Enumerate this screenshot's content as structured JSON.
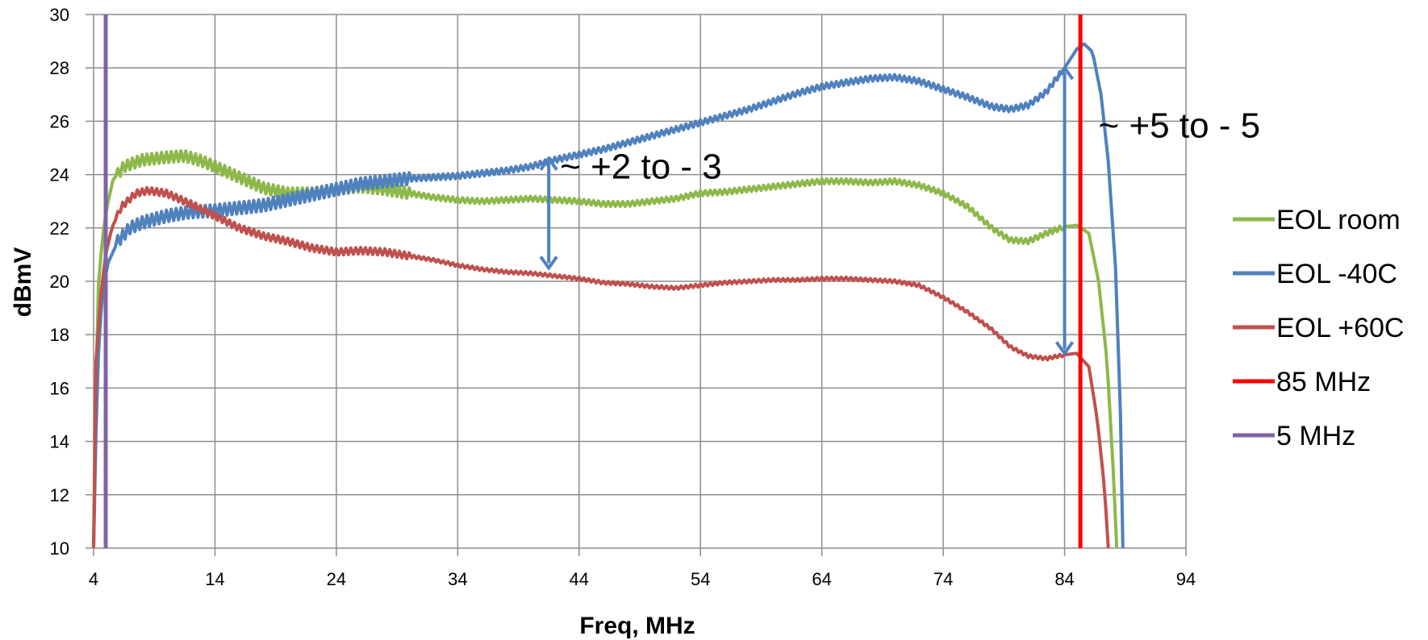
{
  "chart_data": {
    "type": "line",
    "xlabel": "Freq,  MHz",
    "ylabel": "dBmV",
    "xlim": [
      4,
      94
    ],
    "ylim": [
      10,
      30
    ],
    "x_ticks": [
      4,
      14,
      24,
      34,
      44,
      54,
      64,
      74,
      84,
      94
    ],
    "y_ticks": [
      10,
      12,
      14,
      16,
      18,
      20,
      22,
      24,
      26,
      28,
      30
    ],
    "grid": true,
    "legend_position": "right",
    "series": [
      {
        "name": "EOL room",
        "color": "#8DB84A",
        "ripple": 0.2,
        "points": [
          [
            4,
            10
          ],
          [
            4.3,
            19.3
          ],
          [
            4.7,
            21.5
          ],
          [
            5.1,
            22.8
          ],
          [
            5.6,
            23.8
          ],
          [
            6.5,
            24.3
          ],
          [
            8,
            24.55
          ],
          [
            10,
            24.65
          ],
          [
            11.5,
            24.7
          ],
          [
            13,
            24.5
          ],
          [
            14,
            24.3
          ],
          [
            16,
            23.9
          ],
          [
            18,
            23.5
          ],
          [
            20,
            23.3
          ],
          [
            22,
            23.3
          ],
          [
            24,
            23.45
          ],
          [
            26,
            23.55
          ],
          [
            28,
            23.45
          ],
          [
            30,
            23.3
          ],
          [
            32,
            23.15
          ],
          [
            34,
            23.05
          ],
          [
            36,
            23.0
          ],
          [
            38,
            23.05
          ],
          [
            40,
            23.1
          ],
          [
            42,
            23.05
          ],
          [
            44,
            23.0
          ],
          [
            46,
            22.9
          ],
          [
            48,
            22.9
          ],
          [
            50,
            23.0
          ],
          [
            52,
            23.1
          ],
          [
            54,
            23.3
          ],
          [
            56,
            23.35
          ],
          [
            58,
            23.45
          ],
          [
            60,
            23.55
          ],
          [
            62,
            23.65
          ],
          [
            64,
            23.75
          ],
          [
            66,
            23.75
          ],
          [
            68,
            23.7
          ],
          [
            70,
            23.75
          ],
          [
            72,
            23.6
          ],
          [
            74,
            23.3
          ],
          [
            76,
            22.8
          ],
          [
            78,
            22.0
          ],
          [
            79.5,
            21.55
          ],
          [
            81,
            21.5
          ],
          [
            82.5,
            21.8
          ],
          [
            84,
            22.05
          ],
          [
            85,
            22.1
          ],
          [
            86,
            21.8
          ],
          [
            86.8,
            20
          ],
          [
            87.5,
            17
          ],
          [
            88,
            13
          ],
          [
            88.3,
            10
          ]
        ]
      },
      {
        "name": "EOL -40C",
        "color": "#4F81BD",
        "ripple": 0.22,
        "points": [
          [
            4,
            10
          ],
          [
            4.3,
            16.5
          ],
          [
            4.7,
            19.5
          ],
          [
            5.2,
            20.7
          ],
          [
            6,
            21.5
          ],
          [
            7,
            22.0
          ],
          [
            8,
            22.2
          ],
          [
            10,
            22.45
          ],
          [
            12,
            22.6
          ],
          [
            14,
            22.65
          ],
          [
            16,
            22.75
          ],
          [
            18,
            22.85
          ],
          [
            20,
            23.05
          ],
          [
            22,
            23.25
          ],
          [
            24,
            23.45
          ],
          [
            26,
            23.65
          ],
          [
            28,
            23.75
          ],
          [
            30,
            23.85
          ],
          [
            32,
            23.9
          ],
          [
            34,
            23.95
          ],
          [
            36,
            24.05
          ],
          [
            38,
            24.15
          ],
          [
            40,
            24.3
          ],
          [
            42,
            24.55
          ],
          [
            44,
            24.75
          ],
          [
            46,
            24.95
          ],
          [
            48,
            25.2
          ],
          [
            50,
            25.45
          ],
          [
            52,
            25.7
          ],
          [
            54,
            25.95
          ],
          [
            56,
            26.2
          ],
          [
            58,
            26.45
          ],
          [
            60,
            26.75
          ],
          [
            62,
            27.05
          ],
          [
            64,
            27.3
          ],
          [
            66,
            27.45
          ],
          [
            68,
            27.6
          ],
          [
            70,
            27.65
          ],
          [
            72,
            27.5
          ],
          [
            74,
            27.2
          ],
          [
            76,
            26.9
          ],
          [
            78,
            26.55
          ],
          [
            79.5,
            26.45
          ],
          [
            81,
            26.6
          ],
          [
            82.5,
            27.1
          ],
          [
            84,
            28.0
          ],
          [
            85,
            28.7
          ],
          [
            85.6,
            28.9
          ],
          [
            86.3,
            28.6
          ],
          [
            87,
            27.0
          ],
          [
            87.6,
            24.5
          ],
          [
            88.2,
            20.5
          ],
          [
            88.6,
            15
          ],
          [
            88.8,
            10
          ]
        ]
      },
      {
        "name": "EOL +60C",
        "color": "#C0504D",
        "ripple": 0.12,
        "points": [
          [
            4,
            10
          ],
          [
            4.2,
            17
          ],
          [
            4.6,
            19.5
          ],
          [
            5,
            21
          ],
          [
            5.5,
            22.0
          ],
          [
            6.3,
            22.8
          ],
          [
            7.5,
            23.3
          ],
          [
            8.5,
            23.4
          ],
          [
            10,
            23.3
          ],
          [
            12,
            22.9
          ],
          [
            14,
            22.45
          ],
          [
            16,
            22.0
          ],
          [
            18,
            21.7
          ],
          [
            20,
            21.5
          ],
          [
            22,
            21.25
          ],
          [
            24,
            21.1
          ],
          [
            26,
            21.15
          ],
          [
            28,
            21.1
          ],
          [
            30,
            20.95
          ],
          [
            32,
            20.8
          ],
          [
            34,
            20.6
          ],
          [
            36,
            20.45
          ],
          [
            38,
            20.35
          ],
          [
            40,
            20.3
          ],
          [
            42,
            20.2
          ],
          [
            44,
            20.1
          ],
          [
            46,
            19.95
          ],
          [
            48,
            19.9
          ],
          [
            50,
            19.8
          ],
          [
            52,
            19.75
          ],
          [
            54,
            19.85
          ],
          [
            56,
            19.95
          ],
          [
            58,
            20.0
          ],
          [
            60,
            20.05
          ],
          [
            62,
            20.05
          ],
          [
            64,
            20.1
          ],
          [
            66,
            20.1
          ],
          [
            68,
            20.05
          ],
          [
            70,
            20.0
          ],
          [
            72,
            19.85
          ],
          [
            74,
            19.4
          ],
          [
            76,
            18.85
          ],
          [
            78,
            18.2
          ],
          [
            79.5,
            17.55
          ],
          [
            81,
            17.2
          ],
          [
            82.5,
            17.1
          ],
          [
            84,
            17.25
          ],
          [
            85,
            17.3
          ],
          [
            86,
            16.8
          ],
          [
            86.7,
            14.8
          ],
          [
            87.3,
            12.2
          ],
          [
            87.6,
            10
          ]
        ]
      },
      {
        "name": "85 MHz",
        "color": "#FF0000",
        "vertical_x": 85.3
      },
      {
        "name": "5 MHz",
        "color": "#8064A2",
        "vertical_x": 5.0
      }
    ],
    "annotations": [
      {
        "text": "~ +2 to - 3",
        "x": 41.5,
        "y_from": 24.6,
        "y_to": 20.5,
        "color": "#4F81BD"
      },
      {
        "text": "~ +5 to - 5",
        "x": 84,
        "y_from": 28.0,
        "y_to": 17.3,
        "color": "#4F81BD"
      }
    ]
  }
}
